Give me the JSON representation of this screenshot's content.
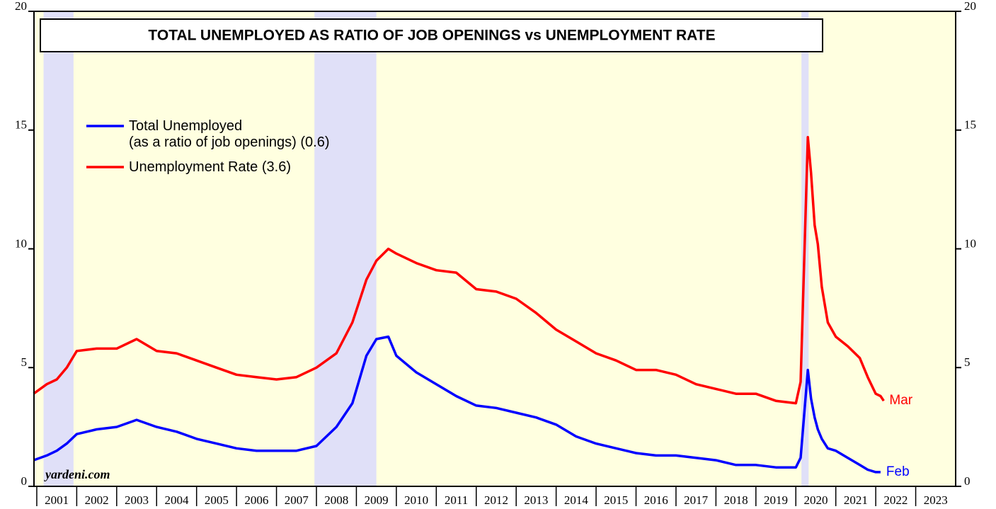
{
  "chart_data": {
    "type": "line",
    "title": "TOTAL UNEMPLOYED AS RATIO OF JOB OPENINGS vs UNEMPLOYMENT RATE",
    "source": "yardeni.com",
    "x": [
      2000.92,
      2001.25,
      2001.5,
      2001.75,
      2002.0,
      2002.5,
      2003.0,
      2003.5,
      2004.0,
      2004.5,
      2005.0,
      2005.5,
      2006.0,
      2006.5,
      2007.0,
      2007.5,
      2008.0,
      2008.5,
      2008.9,
      2009.25,
      2009.5,
      2009.8,
      2010.0,
      2010.5,
      2011.0,
      2011.5,
      2012.0,
      2012.5,
      2013.0,
      2013.5,
      2014.0,
      2014.5,
      2015.0,
      2015.5,
      2016.0,
      2016.5,
      2017.0,
      2017.5,
      2018.0,
      2018.5,
      2019.0,
      2019.5,
      2020.0,
      2020.12,
      2020.3,
      2020.38,
      2020.47,
      2020.55,
      2020.65,
      2020.8,
      2021.0,
      2021.3,
      2021.6,
      2021.8,
      2022.0,
      2022.12,
      2022.2
    ],
    "series": [
      {
        "name": "Total Unemployed\n(as a ratio of job openings) (0.6)",
        "color": "#0000ff",
        "end_label": "Feb",
        "values": [
          1.1,
          1.3,
          1.5,
          1.8,
          2.2,
          2.4,
          2.5,
          2.8,
          2.5,
          2.3,
          2.0,
          1.8,
          1.6,
          1.5,
          1.5,
          1.5,
          1.7,
          2.5,
          3.5,
          5.5,
          6.2,
          6.3,
          5.5,
          4.8,
          4.3,
          3.8,
          3.4,
          3.3,
          3.1,
          2.9,
          2.6,
          2.1,
          1.8,
          1.6,
          1.4,
          1.3,
          1.3,
          1.2,
          1.1,
          0.9,
          0.9,
          0.8,
          0.8,
          1.2,
          4.9,
          3.7,
          2.9,
          2.4,
          2.0,
          1.6,
          1.5,
          1.2,
          0.9,
          0.7,
          0.6,
          0.6,
          null
        ]
      },
      {
        "name": "Unemployment Rate (3.6)",
        "color": "#ff0000",
        "end_label": "Mar",
        "values": [
          3.9,
          4.3,
          4.5,
          5.0,
          5.7,
          5.8,
          5.8,
          6.2,
          5.7,
          5.6,
          5.3,
          5.0,
          4.7,
          4.6,
          4.5,
          4.6,
          5.0,
          5.6,
          6.9,
          8.7,
          9.5,
          10.0,
          9.8,
          9.4,
          9.1,
          9.0,
          8.3,
          8.2,
          7.9,
          7.3,
          6.6,
          6.1,
          5.6,
          5.3,
          4.9,
          4.9,
          4.7,
          4.3,
          4.1,
          3.9,
          3.9,
          3.6,
          3.5,
          4.4,
          14.7,
          13.2,
          11.0,
          10.2,
          8.4,
          6.9,
          6.3,
          5.9,
          5.4,
          4.6,
          3.9,
          3.8,
          3.6
        ]
      }
    ],
    "shaded_periods": [
      [
        2001.17,
        2001.92
      ],
      [
        2007.95,
        2009.5
      ],
      [
        2020.14,
        2020.32
      ]
    ],
    "xlim": [
      2000.93,
      2024
    ],
    "xticks": [
      2001,
      2002,
      2003,
      2004,
      2005,
      2006,
      2007,
      2008,
      2009,
      2010,
      2011,
      2012,
      2013,
      2014,
      2015,
      2016,
      2017,
      2018,
      2019,
      2020,
      2021,
      2022,
      2023
    ],
    "ylim": [
      0,
      20
    ],
    "yticks": [
      0,
      5,
      10,
      15,
      20
    ],
    "y2lim": [
      0,
      20
    ],
    "y2ticks": [
      0,
      5,
      10,
      15,
      20
    ]
  }
}
